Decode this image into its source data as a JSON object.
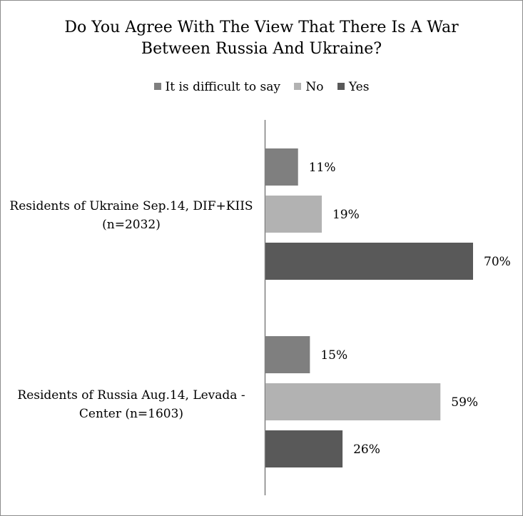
{
  "chart_data": {
    "type": "bar",
    "orientation": "horizontal",
    "title_line1": "Do You Agree With The View That There Is A War",
    "title_line2": "Between Russia And Ukraine?",
    "categories": [
      {
        "line1": "Residents of Ukraine Sep.14, DIF+KIIS",
        "line2": "(n=2032)"
      },
      {
        "line1": "Residents of Russia Aug.14, Levada -",
        "line2": "Center (n=1603)"
      }
    ],
    "series": [
      {
        "name": "It is difficult to say",
        "color": "#7f7f7f",
        "values": [
          11,
          15
        ]
      },
      {
        "name": "No",
        "color": "#b2b2b2",
        "values": [
          19,
          59
        ]
      },
      {
        "name": "Yes",
        "color": "#595959",
        "values": [
          70,
          26
        ]
      }
    ],
    "value_suffix": "%",
    "xlim": [
      0,
      100
    ],
    "legend_position": "top",
    "grid": false
  }
}
